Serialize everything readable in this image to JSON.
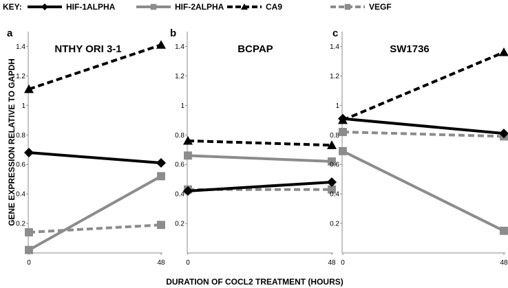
{
  "key": {
    "label": "KEY:",
    "entries": [
      {
        "name": "HIF-1ALPHA",
        "color": "#000000",
        "dash": "solid",
        "marker": "diamond"
      },
      {
        "name": "HIF-2ALPHA",
        "color": "#8c8c8c",
        "dash": "solid",
        "marker": "square"
      },
      {
        "name": "CA9",
        "color": "#000000",
        "dash": "dashed",
        "marker": "triangle"
      },
      {
        "name": "VEGF",
        "color": "#8c8c8c",
        "dash": "dashed",
        "marker": "square"
      }
    ]
  },
  "ylabel": "GENE EXPRESSION RELATIVE TO GAPDH",
  "xlabel": "DURATION OF COCL2 TREATMENT (HOURS)",
  "chart_data": [
    {
      "type": "line",
      "panel_letter": "a",
      "title": "NTHY ORI 3-1",
      "x": [
        0,
        48
      ],
      "x_tick_labels": [
        "0",
        "48"
      ],
      "y_ticks": [
        0.2,
        0.4,
        0.6,
        0.8,
        1,
        1.2,
        1.4
      ],
      "y_tick_labels": [
        "0.2",
        "0.4",
        "0.6",
        "0.8",
        "1",
        "1.2",
        "1.4"
      ],
      "ylim": [
        0,
        1.5
      ],
      "series": [
        {
          "name": "HIF-1ALPHA",
          "values": [
            0.68,
            0.61
          ]
        },
        {
          "name": "HIF-2ALPHA",
          "values": [
            0.02,
            0.52
          ]
        },
        {
          "name": "CA9",
          "values": [
            1.11,
            1.41
          ]
        },
        {
          "name": "VEGF",
          "values": [
            0.14,
            0.19
          ]
        }
      ]
    },
    {
      "type": "line",
      "panel_letter": "b",
      "title": "BCPAP",
      "x": [
        0,
        48
      ],
      "x_tick_labels": [
        "0",
        "48"
      ],
      "y_ticks": [
        0.2,
        0.4,
        0.6,
        0.8,
        1,
        1.2,
        1.4
      ],
      "y_tick_labels": [
        "0.2",
        "0.4",
        "0.6",
        "0.8",
        "1",
        "1.2",
        "1.4"
      ],
      "ylim": [
        0,
        1.5
      ],
      "series": [
        {
          "name": "HIF-1ALPHA",
          "values": [
            0.42,
            0.48
          ]
        },
        {
          "name": "HIF-2ALPHA",
          "values": [
            0.66,
            0.62
          ]
        },
        {
          "name": "CA9",
          "values": [
            0.76,
            0.73
          ]
        },
        {
          "name": "VEGF",
          "values": [
            0.43,
            0.43
          ]
        }
      ]
    },
    {
      "type": "line",
      "panel_letter": "c",
      "title": "SW1736",
      "x": [
        0,
        48
      ],
      "x_tick_labels": [
        "0",
        "48"
      ],
      "y_ticks": [
        0.2,
        0.4,
        0.6,
        0.8,
        1,
        1.2,
        1.4
      ],
      "y_tick_labels": [
        "0.2",
        "0.4",
        "0.6",
        "0.8",
        "1",
        "1.2",
        "1.4"
      ],
      "ylim": [
        0,
        1.5
      ],
      "series": [
        {
          "name": "HIF-1ALPHA",
          "values": [
            0.91,
            0.81
          ]
        },
        {
          "name": "HIF-2ALPHA",
          "values": [
            0.69,
            0.15
          ]
        },
        {
          "name": "CA9",
          "values": [
            0.9,
            1.36
          ]
        },
        {
          "name": "VEGF",
          "values": [
            0.82,
            0.79
          ]
        }
      ]
    }
  ]
}
